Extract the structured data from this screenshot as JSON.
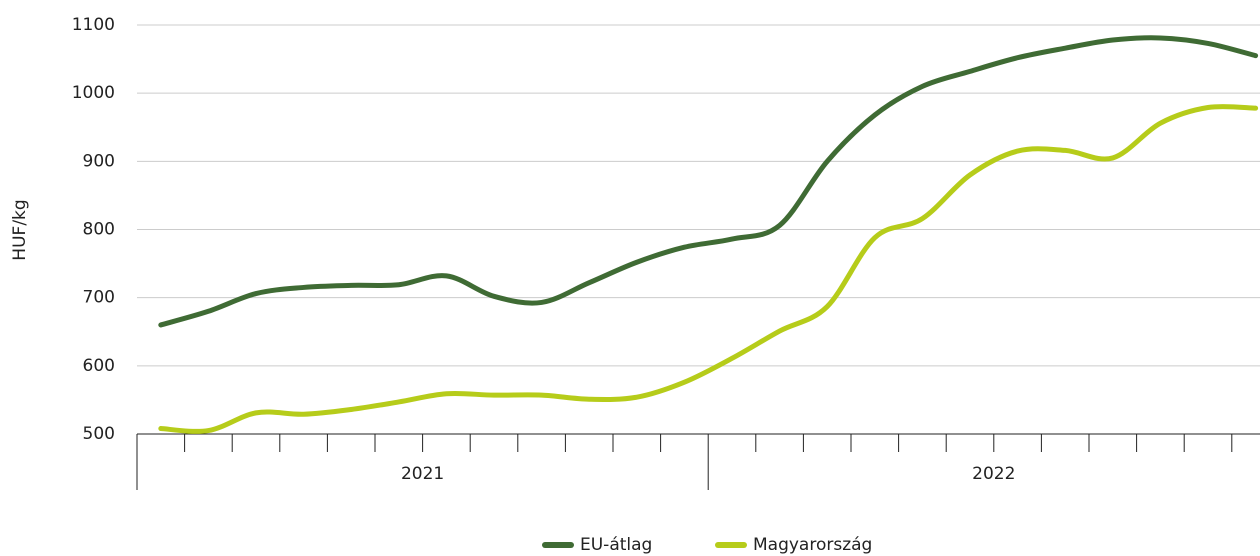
{
  "chart_data": {
    "type": "line",
    "y_label": "HUF/kg",
    "categories": [
      null,
      null,
      null,
      null,
      null,
      null,
      null,
      null,
      null,
      null,
      null,
      null,
      null,
      null,
      null,
      null,
      null,
      null,
      null,
      null,
      null,
      null,
      null,
      null
    ],
    "x_groups": [
      "2021",
      "2022"
    ],
    "series": [
      {
        "name": "EU-átlag",
        "color": "#3f6b34",
        "values": [
          660,
          680,
          706,
          715,
          718,
          719,
          732,
          702,
          693,
          722,
          752,
          774,
          786,
          806,
          900,
          968,
          1010,
          1032,
          1052,
          1066,
          1078,
          1081,
          1073,
          1055
        ]
      },
      {
        "name": "Magyarország",
        "color": "#b6cc1a",
        "values": [
          508,
          505,
          531,
          529,
          536,
          547,
          559,
          557,
          557,
          551,
          554,
          576,
          611,
          651,
          687,
          788,
          816,
          880,
          915,
          916,
          905,
          956,
          979,
          978
        ]
      }
    ],
    "ylim": [
      500,
      1100
    ],
    "yticks": [
      500,
      600,
      700,
      800,
      900,
      1000,
      1100
    ],
    "grid": true,
    "legend": "bottom"
  }
}
